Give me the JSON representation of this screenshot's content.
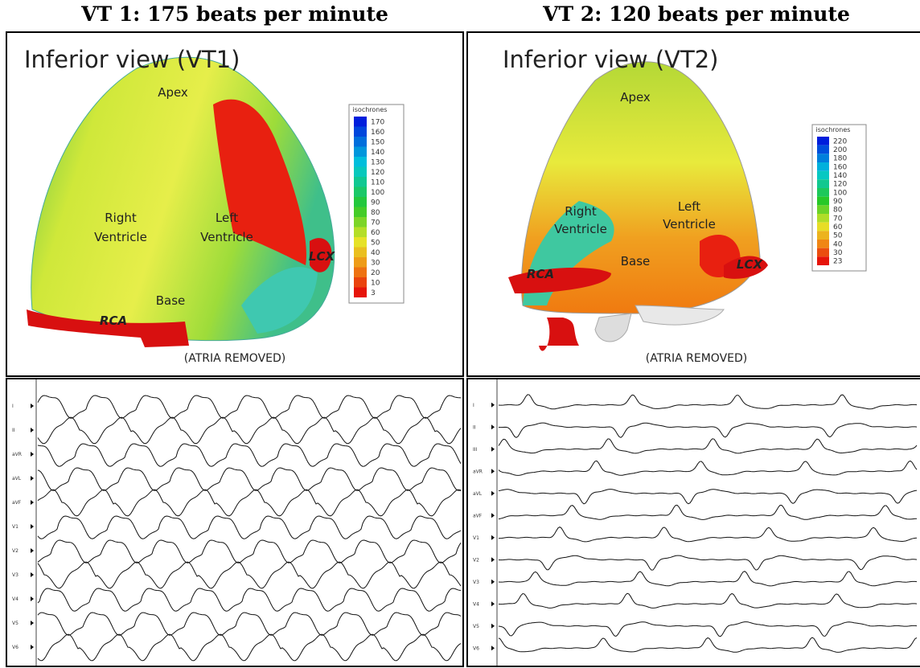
{
  "panels": [
    {
      "title": "VT 1: 175 beats per minute",
      "view": "Inferior view (VT1)",
      "labels": [
        "Apex",
        "Right",
        "Ventricle",
        "Left",
        "Ventricle",
        "Base",
        "RCA",
        "LCX"
      ],
      "legend": {
        "title": "isochrones",
        "ticks": [
          170,
          160,
          150,
          140,
          130,
          120,
          110,
          100,
          90,
          80,
          70,
          60,
          50,
          40,
          30,
          20,
          10,
          3
        ]
      },
      "footer": "(ATRIA REMOVED)",
      "leads": [
        "I",
        "II",
        "aVR",
        "aVL",
        "aVF",
        "V1",
        "V2",
        "V3",
        "V4",
        "V5",
        "V6"
      ]
    },
    {
      "title": "VT 2: 120 beats per minute",
      "view": "Inferior view (VT2)",
      "labels": [
        "Apex",
        "Right",
        "Ventricle",
        "Left",
        "Ventricle",
        "Base",
        "RCA",
        "LCX"
      ],
      "legend": {
        "title": "isochrones",
        "ticks": [
          220,
          200,
          180,
          160,
          140,
          120,
          100,
          90,
          80,
          70,
          60,
          50,
          40,
          30,
          23
        ]
      },
      "footer": "(ATRIA REMOVED)",
      "leads": [
        "I",
        "II",
        "III",
        "aVR",
        "aVL",
        "aVF",
        "V1",
        "V2",
        "V3",
        "V4",
        "V5",
        "V6"
      ]
    }
  ]
}
